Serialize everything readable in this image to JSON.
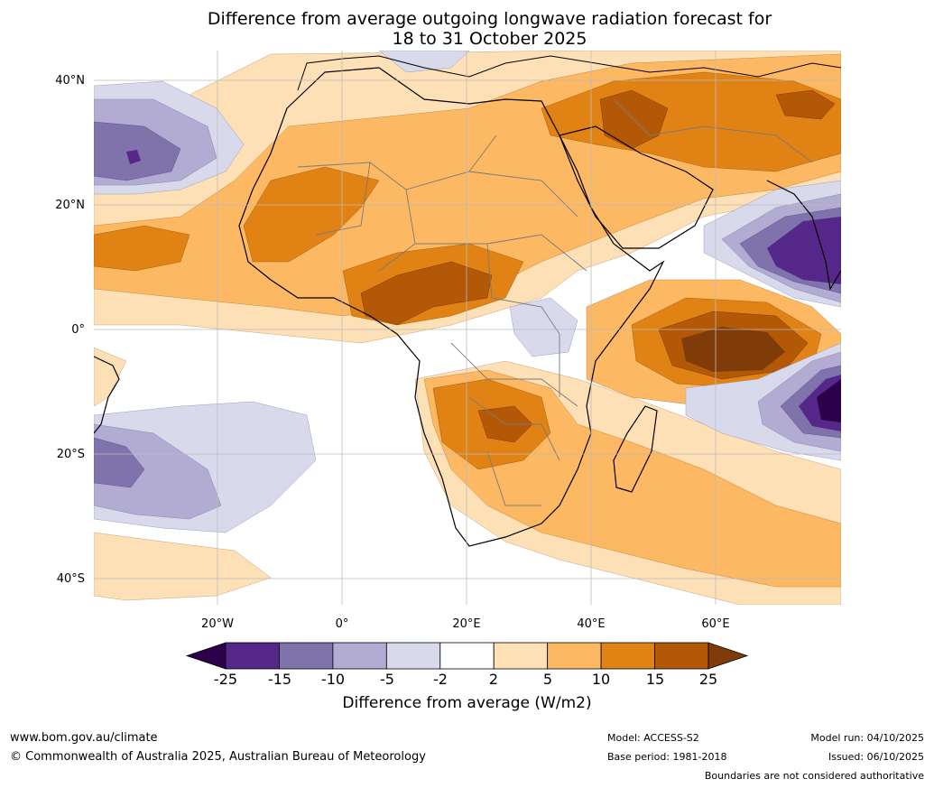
{
  "title_line1": "Difference from average outgoing longwave radiation forecast for",
  "title_line2": "18 to 31 October 2025",
  "lat_labels": [
    "40°N",
    "20°N",
    "0°",
    "20°S",
    "40°S"
  ],
  "lon_labels": [
    "20°W",
    "0°",
    "20°E",
    "40°E",
    "60°E"
  ],
  "colorbar": {
    "ticks": [
      "-25",
      "-15",
      "-10",
      "-5",
      "-2",
      "2",
      "5",
      "10",
      "15",
      "25"
    ],
    "colors": [
      "#2d004b",
      "#542788",
      "#8073ac",
      "#b2abd2",
      "#d8daeb",
      "#ffffff",
      "#fee0b6",
      "#fdb863",
      "#e08214",
      "#b35806",
      "#7f3b08"
    ],
    "label": "Difference from average (W/m2)"
  },
  "footer": {
    "website": "www.bom.gov.au/climate",
    "copyright": "© Commonwealth of Australia 2025, Australian Bureau of Meteorology",
    "model": "Model: ACCESS-S2",
    "base_period": "Base period: 1981-2018",
    "model_run": "Model run: 04/10/2025",
    "issued": "Issued: 06/10/2025",
    "disclaimer": "Boundaries are not considered authoritative"
  }
}
